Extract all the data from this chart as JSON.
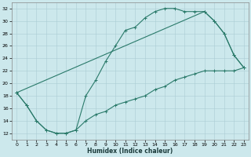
{
  "xlabel": "Humidex (Indice chaleur)",
  "bg_color": "#cce8ec",
  "line_color": "#2a7a6a",
  "grid_color": "#aaccd4",
  "xlim": [
    -0.5,
    23.5
  ],
  "ylim": [
    11,
    33
  ],
  "xticks": [
    0,
    1,
    2,
    3,
    4,
    5,
    6,
    7,
    8,
    9,
    10,
    11,
    12,
    13,
    14,
    15,
    16,
    17,
    18,
    19,
    20,
    21,
    22,
    23
  ],
  "yticks": [
    12,
    14,
    16,
    18,
    20,
    22,
    24,
    26,
    28,
    30,
    32
  ],
  "curve1_x": [
    0,
    1,
    2,
    3,
    4,
    5,
    6,
    7,
    8,
    9,
    10,
    11,
    12,
    13,
    14,
    15,
    16,
    17,
    18,
    19,
    20,
    21,
    22,
    23
  ],
  "curve1_y": [
    18.5,
    16.5,
    14,
    12.5,
    12,
    12,
    12.5,
    18,
    20.5,
    23.5,
    26,
    28.5,
    29,
    30.5,
    31.5,
    32,
    32,
    31.5,
    31.5,
    31.5,
    30,
    28,
    24.5,
    22.5
  ],
  "curve2_x": [
    0,
    1,
    2,
    3,
    4,
    5,
    6,
    7,
    8,
    9,
    10,
    11,
    12,
    13,
    14,
    15,
    16,
    17,
    18,
    19,
    20,
    21,
    22,
    23
  ],
  "curve2_y": [
    18.5,
    16.5,
    14,
    12.5,
    12,
    12,
    12.5,
    14,
    15,
    15.5,
    16.5,
    17,
    17.5,
    18,
    19,
    19.5,
    20.5,
    21,
    21.5,
    22,
    22,
    22,
    22,
    22.5
  ],
  "curve3_x": [
    0,
    19,
    20,
    21,
    22,
    23
  ],
  "curve3_y": [
    18.5,
    31.5,
    30,
    28,
    24.5,
    22.5
  ]
}
